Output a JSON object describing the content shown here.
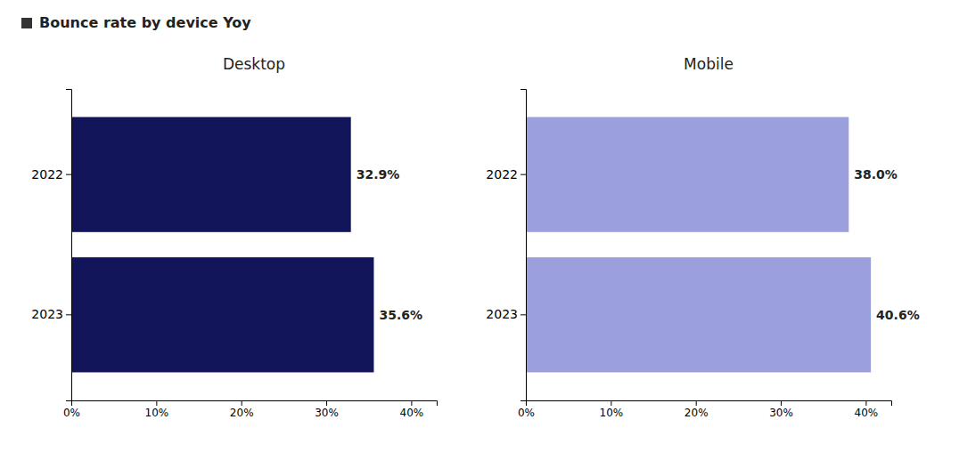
{
  "title": "Bounce rate by device Yoy",
  "chart_data": [
    {
      "type": "bar",
      "orientation": "horizontal",
      "title": "Desktop",
      "categories": [
        "2022",
        "2023"
      ],
      "values": [
        32.9,
        35.6
      ],
      "value_labels": [
        "32.9%",
        "35.6%"
      ],
      "data_labels": true,
      "color": "#12155a",
      "grid": false,
      "xlim": [
        0,
        43
      ],
      "xticks": [
        {
          "value": 0,
          "label": "0%"
        },
        {
          "value": 10,
          "label": "10%"
        },
        {
          "value": 20,
          "label": "20%"
        },
        {
          "value": 30,
          "label": "30%"
        },
        {
          "value": 40,
          "label": "40%"
        }
      ]
    },
    {
      "type": "bar",
      "orientation": "horizontal",
      "title": "Mobile",
      "categories": [
        "2022",
        "2023"
      ],
      "values": [
        38.0,
        40.6
      ],
      "value_labels": [
        "38.0%",
        "40.6%"
      ],
      "data_labels": true,
      "color": "#9b9fdb",
      "grid": false,
      "xlim": [
        0,
        43
      ],
      "xticks": [
        {
          "value": 0,
          "label": "0%"
        },
        {
          "value": 10,
          "label": "10%"
        },
        {
          "value": 20,
          "label": "20%"
        },
        {
          "value": 30,
          "label": "30%"
        },
        {
          "value": 40,
          "label": "40%"
        }
      ]
    }
  ]
}
